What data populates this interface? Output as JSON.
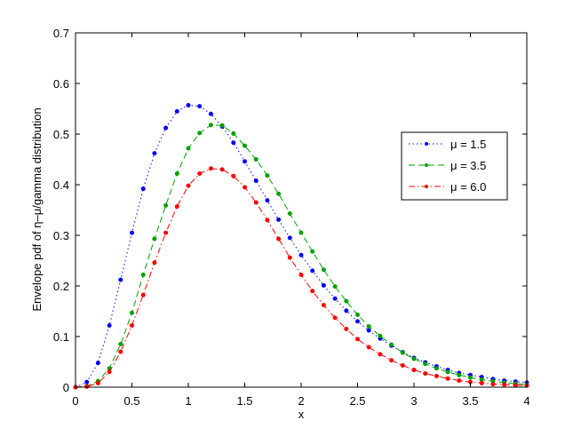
{
  "chart_data": {
    "type": "line",
    "title": "",
    "xlabel": "x",
    "ylabel": "Envelope pdf of η–μ/gamma distribution",
    "xlim": [
      0,
      4
    ],
    "ylim": [
      0,
      0.7
    ],
    "grid": false,
    "legend_position": "upper-right",
    "x_ticks": [
      "0",
      "0.5",
      "1",
      "1.5",
      "2",
      "2.5",
      "3",
      "3.5",
      "4"
    ],
    "y_ticks": [
      "0",
      "0.1",
      "0.2",
      "0.3",
      "0.4",
      "0.5",
      "0.6",
      "0.7"
    ],
    "x": [
      0,
      0.1,
      0.2,
      0.3,
      0.4,
      0.5,
      0.6,
      0.7,
      0.8,
      0.9,
      1.0,
      1.1,
      1.2,
      1.3,
      1.4,
      1.5,
      1.6,
      1.7,
      1.8,
      1.9,
      2.0,
      2.1,
      2.2,
      2.3,
      2.4,
      2.5,
      2.6,
      2.7,
      2.8,
      2.9,
      3.0,
      3.1,
      3.2,
      3.3,
      3.4,
      3.5,
      3.6,
      3.7,
      3.8,
      3.9,
      4.0
    ],
    "series": [
      {
        "name": "μ = 1.5",
        "color": "#0000ff",
        "line_style": "dotted",
        "marker": "dot",
        "values": [
          0,
          0.01,
          0.048,
          0.122,
          0.212,
          0.305,
          0.392,
          0.462,
          0.512,
          0.545,
          0.557,
          0.555,
          0.54,
          0.515,
          0.483,
          0.446,
          0.408,
          0.369,
          0.331,
          0.295,
          0.261,
          0.23,
          0.201,
          0.175,
          0.151,
          0.13,
          0.112,
          0.096,
          0.082,
          0.069,
          0.058,
          0.049,
          0.041,
          0.034,
          0.028,
          0.024,
          0.02,
          0.016,
          0.013,
          0.011,
          0.009
        ]
      },
      {
        "name": "μ = 3.5",
        "color": "#00a000",
        "line_style": "dashed",
        "marker": "dot",
        "values": [
          0,
          0.002,
          0.012,
          0.037,
          0.085,
          0.147,
          0.222,
          0.293,
          0.359,
          0.422,
          0.472,
          0.502,
          0.518,
          0.517,
          0.501,
          0.477,
          0.45,
          0.418,
          0.382,
          0.343,
          0.305,
          0.268,
          0.232,
          0.199,
          0.17,
          0.143,
          0.12,
          0.101,
          0.084,
          0.068,
          0.056,
          0.046,
          0.037,
          0.03,
          0.024,
          0.019,
          0.015,
          0.012,
          0.009,
          0.007,
          0.005
        ]
      },
      {
        "name": "μ = 6.0",
        "color": "#ff0000",
        "line_style": "dash-dot",
        "marker": "dot",
        "values": [
          0,
          0.001,
          0.008,
          0.03,
          0.07,
          0.122,
          0.182,
          0.246,
          0.305,
          0.357,
          0.398,
          0.422,
          0.432,
          0.43,
          0.417,
          0.395,
          0.365,
          0.33,
          0.293,
          0.256,
          0.222,
          0.19,
          0.162,
          0.137,
          0.115,
          0.095,
          0.079,
          0.065,
          0.053,
          0.043,
          0.034,
          0.027,
          0.022,
          0.017,
          0.013,
          0.01,
          0.008,
          0.006,
          0.005,
          0.004,
          0.003
        ]
      }
    ]
  }
}
